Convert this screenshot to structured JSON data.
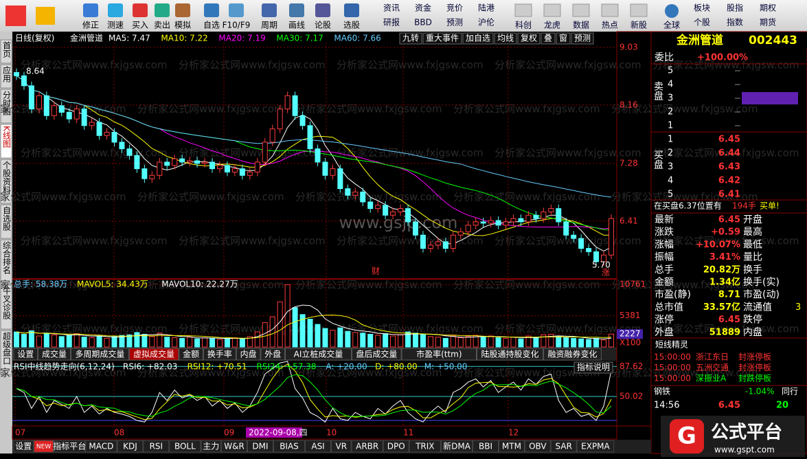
{
  "toolbar": {
    "buttons": [
      "修正",
      "测速",
      "买入",
      "卖出",
      "模拟",
      "自选",
      "F10/F9",
      "周期",
      "画线",
      "论股",
      "选股"
    ],
    "links": [
      "资讯",
      "资金",
      "竞价",
      "陆港",
      "研报",
      "BBD",
      "预测",
      "沪伦",
      "科创",
      "龙虎",
      "数据",
      "热点",
      "新股",
      "全球",
      "板块",
      "股指",
      "期权",
      "个股",
      "指数",
      "期货"
    ]
  },
  "side_tabs": [
    "首页",
    "应用",
    "分时图",
    "K线图",
    "个股资料",
    "自选股",
    "综合排名",
    "牛叉诊股",
    "超级盘口"
  ],
  "kline": {
    "header": [
      "日线(复权)",
      "金洲管道",
      "MA5: 7.47",
      "MA10: 7.22",
      "MA20: 7.19",
      "MA30: 7.17",
      "MA60: 7.66"
    ],
    "buttons": [
      "九转",
      "重大事件",
      "加自选",
      "均线",
      "复权",
      "叠",
      "窗",
      "预测"
    ],
    "ylim": [
      5.55,
      9.1
    ],
    "yticks": [
      9.03,
      8.16,
      7.28,
      6.41
    ],
    "high_label": "8.64",
    "low_label": "5.70",
    "marks": [
      "财",
      "涨"
    ],
    "closes": [
      8.6,
      8.45,
      8.1,
      8.3,
      8.0,
      8.15,
      8.05,
      7.95,
      8.1,
      7.85,
      7.9,
      7.7,
      7.75,
      7.6,
      7.5,
      7.4,
      7.2,
      7.05,
      7.1,
      7.3,
      7.25,
      7.35,
      7.3,
      7.32,
      7.28,
      7.3,
      7.2,
      7.25,
      7.15,
      7.2,
      7.1,
      7.15,
      7.3,
      7.6,
      7.8,
      8.1,
      8.3,
      8.0,
      7.85,
      7.5,
      7.3,
      7.1,
      7.2,
      6.9,
      6.8,
      6.85,
      6.7,
      6.6,
      6.65,
      6.5,
      6.55,
      6.6,
      6.4,
      6.2,
      6.0,
      6.05,
      6.1,
      6.0,
      6.2,
      6.25,
      6.35,
      6.4,
      6.38,
      6.42,
      6.35,
      6.4,
      6.45,
      6.4,
      6.5,
      6.45,
      6.55,
      6.6,
      6.4,
      6.2,
      6.15,
      6.0,
      5.95,
      5.8,
      5.9,
      6.45
    ],
    "watermark": "分析家公式网www.fxjgsw.com",
    "center_watermark": "www.gsjp.com"
  },
  "volume": {
    "header": [
      "总手: 58.38万",
      "MAVOL5: 34.43万",
      "MAVOL10: 22.27万"
    ],
    "ylim": [
      0,
      11500
    ],
    "yticks": [
      10761,
      5381,
      2227
    ],
    "unit": "X100",
    "values": [
      2600,
      2200,
      2800,
      1900,
      2400,
      2100,
      1800,
      2000,
      2300,
      1700,
      1600,
      1900,
      1500,
      1800,
      2000,
      2100,
      2500,
      2200,
      1800,
      2400,
      1700,
      1600,
      1500,
      1700,
      1400,
      1600,
      1500,
      1300,
      1500,
      1600,
      1400,
      1800,
      2600,
      4200,
      5200,
      7800,
      10761,
      6800,
      5600,
      4800,
      3900,
      3200,
      2900,
      3300,
      2700,
      2500,
      2400,
      2200,
      2000,
      2300,
      1900,
      2100,
      2600,
      2400,
      2200,
      1800,
      1700,
      1500,
      1900,
      1600,
      1800,
      2000,
      1700,
      1900,
      1600,
      1500,
      1700,
      1400,
      1900,
      1600,
      2100,
      2200,
      1800,
      1600,
      1500,
      1400,
      1300,
      1500,
      1200,
      2227
    ],
    "tabs": [
      "设置",
      "成交量",
      "多周期成交量",
      "虚拟成交量",
      "金额",
      "换手率",
      "内盘",
      "外盘",
      "AI立桩成交量",
      "盘后成交量",
      "市盈率(ttm)",
      "陆股通持股变化",
      "融资融券变化"
    ]
  },
  "rsi": {
    "header": [
      "RSI中线趋势走向(6,12,24)",
      "RSI6: +82.03",
      "RSI12: +70.51",
      "RSI24: +57.38",
      "A: +20.00",
      "D: +80.00",
      "M: +50.00"
    ],
    "button": "指标说明",
    "ylim": [
      13,
      93
    ],
    "yticks": [
      87.62,
      50.02
    ],
    "values": [
      60,
      55,
      35,
      50,
      30,
      45,
      40,
      35,
      50,
      30,
      38,
      28,
      35,
      30,
      28,
      25,
      20,
      18,
      30,
      55,
      45,
      58,
      48,
      52,
      45,
      50,
      38,
      45,
      35,
      42,
      30,
      38,
      55,
      78,
      85,
      92,
      94,
      60,
      48,
      30,
      25,
      18,
      35,
      22,
      20,
      30,
      25,
      22,
      35,
      28,
      38,
      45,
      30,
      22,
      18,
      30,
      38,
      30,
      55,
      60,
      68,
      72,
      62,
      70,
      55,
      62,
      68,
      58,
      72,
      65,
      75,
      78,
      45,
      30,
      35,
      25,
      28,
      20,
      38,
      82.03
    ]
  },
  "dates": [
    "07",
    "08",
    "09",
    "2022-09-08,四",
    "10",
    "11",
    "12"
  ],
  "bottom_tabs": [
    "设置",
    "NEW",
    "指标平台",
    "MACD",
    "KDJ",
    "RSI",
    "BOLL",
    "主力",
    "W&R",
    "DMI",
    "BIAS",
    "ASI",
    "VR",
    "ARBR",
    "DPO",
    "TRIX",
    "新DMA",
    "BBI",
    "MTM",
    "OBV",
    "SAR",
    "EXPMA"
  ],
  "quote": {
    "name": "金洲管道",
    "code": "002443",
    "ratio_label": "委比",
    "ratio": "+100.00%",
    "sell_label": "卖盘",
    "buy_label": "买盘",
    "sell_levels": [
      "5",
      "4",
      "3",
      "2",
      "1"
    ],
    "buy_levels": [
      "1",
      "2",
      "3",
      "4",
      "5"
    ],
    "buy_prices": [
      "6.45",
      "6.44",
      "6.43",
      "6.42",
      "6.41"
    ],
    "notice": [
      "在买盘6.37位置有",
      "194手",
      "买单!"
    ],
    "stats": [
      [
        "最新",
        "6.45",
        "开盘"
      ],
      [
        "涨跌",
        "+0.59",
        "最高"
      ],
      [
        "涨幅",
        "+10.07%",
        "最低"
      ],
      [
        "振幅",
        "3.41%",
        "量比"
      ],
      [
        "总手",
        "20.82万",
        "换手"
      ],
      [
        "金额",
        "1.34亿",
        "换手(实)"
      ],
      [
        "市盈(静)",
        "8.71",
        "市盈(动)"
      ],
      [
        "总市值",
        "33.57亿",
        "流通值",
        "3"
      ],
      [
        "涨停",
        "6.45",
        "跌停"
      ],
      [
        "外盘",
        "51889",
        "内盘"
      ]
    ],
    "elf_title": "短线精灵",
    "elf": [
      [
        "15:00:00",
        "浙江东日",
        "封涨停板"
      ],
      [
        "15:00:00",
        "五洲交通",
        "封涨停板"
      ],
      [
        "15:00:00",
        "深振业A",
        "封跌停板"
      ]
    ],
    "sector": [
      "钢铁",
      "-1.04%",
      "同行"
    ],
    "tick": [
      "14:56",
      "6.45",
      "20"
    ]
  },
  "logo": {
    "text": "公式平台",
    "url": "www.gspt.com"
  }
}
